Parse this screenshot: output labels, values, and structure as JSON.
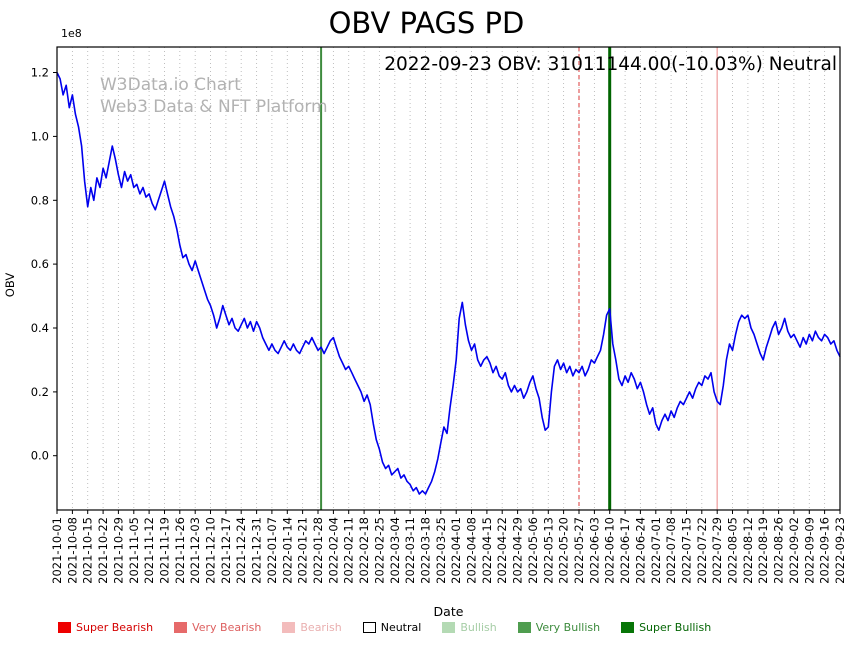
{
  "title": "OBV PAGS PD",
  "annotation": "2022-09-23 OBV: 31011144.00(-10.03%) Neutral",
  "watermark": {
    "line1": "W3Data.io Chart",
    "line2": "Web3 Data & NFT Platform"
  },
  "axes": {
    "y_label": "OBV",
    "y_offset_label": "1e8",
    "x_label": "Date"
  },
  "legend": {
    "items": [
      {
        "label": "Super Bearish",
        "box": "#ee0000",
        "text": "#d40000"
      },
      {
        "label": "Very Bearish",
        "box": "#e66a6a",
        "text": "#dd5f5f"
      },
      {
        "label": "Bearish",
        "box": "#f3bcbc",
        "text": "#e9afaf"
      },
      {
        "label": "Neutral",
        "box": "#ffffff",
        "text": "#000000",
        "border": "#000000"
      },
      {
        "label": "Bullish",
        "box": "#b4dab4",
        "text": "#a6cda6"
      },
      {
        "label": "Very Bullish",
        "box": "#4f9d4f",
        "text": "#3d8b3d"
      },
      {
        "label": "Super Bullish",
        "box": "#077507",
        "text": "#056605"
      }
    ]
  },
  "chart_data": {
    "type": "line",
    "title": "OBV PAGS PD",
    "series_name": "OBV",
    "xlabel": "Date",
    "ylabel": "OBV",
    "unit_multiplier": 100000000,
    "line_color": "#0000ee",
    "grid": "vertical-dotted",
    "legend_position": "bottom",
    "ylim": [
      -0.17,
      1.28
    ],
    "y_ticks": [
      0.0,
      0.2,
      0.4,
      0.6,
      0.8,
      1.0,
      1.2
    ],
    "points_per_tick": 5,
    "x_tick_labels": [
      "2021-10-01",
      "2021-10-08",
      "2021-10-15",
      "2021-10-22",
      "2021-10-29",
      "2021-11-05",
      "2021-11-12",
      "2021-11-19",
      "2021-11-26",
      "2021-12-03",
      "2021-12-10",
      "2021-12-17",
      "2021-12-24",
      "2021-12-31",
      "2022-01-07",
      "2022-01-14",
      "2022-01-21",
      "2022-01-28",
      "2022-02-04",
      "2022-02-11",
      "2022-02-18",
      "2022-02-25",
      "2022-03-04",
      "2022-03-11",
      "2022-03-18",
      "2022-03-25",
      "2022-04-01",
      "2022-04-08",
      "2022-04-15",
      "2022-04-22",
      "2022-04-29",
      "2022-05-06",
      "2022-05-13",
      "2022-05-20",
      "2022-05-27",
      "2022-06-03",
      "2022-06-10",
      "2022-06-17",
      "2022-06-24",
      "2022-07-01",
      "2022-07-08",
      "2022-07-15",
      "2022-07-22",
      "2022-07-29",
      "2022-08-05",
      "2022-08-12",
      "2022-08-19",
      "2022-08-26",
      "2022-09-02",
      "2022-09-09",
      "2022-09-16",
      "2022-09-23"
    ],
    "values_1e8": [
      1.2,
      1.18,
      1.13,
      1.16,
      1.09,
      1.13,
      1.07,
      1.03,
      0.97,
      0.86,
      0.78,
      0.84,
      0.8,
      0.87,
      0.84,
      0.9,
      0.87,
      0.92,
      0.97,
      0.93,
      0.88,
      0.84,
      0.89,
      0.86,
      0.88,
      0.84,
      0.85,
      0.82,
      0.84,
      0.81,
      0.82,
      0.79,
      0.77,
      0.8,
      0.83,
      0.86,
      0.82,
      0.78,
      0.75,
      0.71,
      0.66,
      0.62,
      0.63,
      0.6,
      0.58,
      0.61,
      0.58,
      0.55,
      0.52,
      0.49,
      0.47,
      0.44,
      0.4,
      0.43,
      0.47,
      0.44,
      0.41,
      0.43,
      0.4,
      0.39,
      0.41,
      0.43,
      0.4,
      0.42,
      0.39,
      0.42,
      0.4,
      0.37,
      0.35,
      0.33,
      0.35,
      0.33,
      0.32,
      0.34,
      0.36,
      0.34,
      0.33,
      0.35,
      0.33,
      0.32,
      0.34,
      0.36,
      0.35,
      0.37,
      0.35,
      0.33,
      0.34,
      0.32,
      0.34,
      0.36,
      0.37,
      0.34,
      0.31,
      0.29,
      0.27,
      0.28,
      0.26,
      0.24,
      0.22,
      0.2,
      0.17,
      0.19,
      0.16,
      0.1,
      0.05,
      0.02,
      -0.02,
      -0.04,
      -0.03,
      -0.06,
      -0.05,
      -0.04,
      -0.07,
      -0.06,
      -0.08,
      -0.09,
      -0.11,
      -0.1,
      -0.12,
      -0.11,
      -0.12,
      -0.1,
      -0.08,
      -0.05,
      -0.01,
      0.04,
      0.09,
      0.07,
      0.15,
      0.22,
      0.3,
      0.43,
      0.48,
      0.41,
      0.36,
      0.33,
      0.35,
      0.3,
      0.28,
      0.3,
      0.31,
      0.29,
      0.26,
      0.28,
      0.25,
      0.24,
      0.26,
      0.22,
      0.2,
      0.22,
      0.2,
      0.21,
      0.18,
      0.2,
      0.23,
      0.25,
      0.21,
      0.18,
      0.12,
      0.08,
      0.09,
      0.2,
      0.28,
      0.3,
      0.27,
      0.29,
      0.26,
      0.28,
      0.25,
      0.27,
      0.26,
      0.28,
      0.25,
      0.27,
      0.3,
      0.29,
      0.31,
      0.33,
      0.38,
      0.44,
      0.46,
      0.35,
      0.3,
      0.24,
      0.22,
      0.25,
      0.23,
      0.26,
      0.24,
      0.21,
      0.23,
      0.2,
      0.16,
      0.13,
      0.15,
      0.1,
      0.08,
      0.11,
      0.13,
      0.11,
      0.14,
      0.12,
      0.15,
      0.17,
      0.16,
      0.18,
      0.2,
      0.18,
      0.21,
      0.23,
      0.22,
      0.25,
      0.24,
      0.26,
      0.2,
      0.17,
      0.16,
      0.22,
      0.3,
      0.35,
      0.33,
      0.38,
      0.42,
      0.44,
      0.43,
      0.44,
      0.4,
      0.38,
      0.35,
      0.32,
      0.3,
      0.34,
      0.37,
      0.4,
      0.42,
      0.38,
      0.4,
      0.43,
      0.39,
      0.37,
      0.38,
      0.36,
      0.34,
      0.37,
      0.35,
      0.38,
      0.36,
      0.39,
      0.37,
      0.36,
      0.38,
      0.37,
      0.35,
      0.36,
      0.33,
      0.31
    ],
    "signal_lines": [
      {
        "date": "2022-01-28",
        "day": 86,
        "signal": "very-bullish",
        "color": "#3d8b3d",
        "width": 2,
        "dash": ""
      },
      {
        "date": "2022-05-27",
        "day": 170,
        "signal": "very-bearish",
        "color": "#e57373",
        "width": 1.4,
        "dash": "4 3"
      },
      {
        "date": "2022-06-10",
        "day": 180,
        "signal": "super-bullish",
        "color": "#006400",
        "width": 3,
        "dash": ""
      },
      {
        "date": "2022-07-29",
        "day": 215,
        "signal": "bearish",
        "color": "#f2b3b3",
        "width": 1.6,
        "dash": ""
      }
    ],
    "last_point": {
      "date": "2022-09-23",
      "obv": 31011144.0,
      "change_pct": -10.03,
      "signal": "Neutral"
    }
  }
}
